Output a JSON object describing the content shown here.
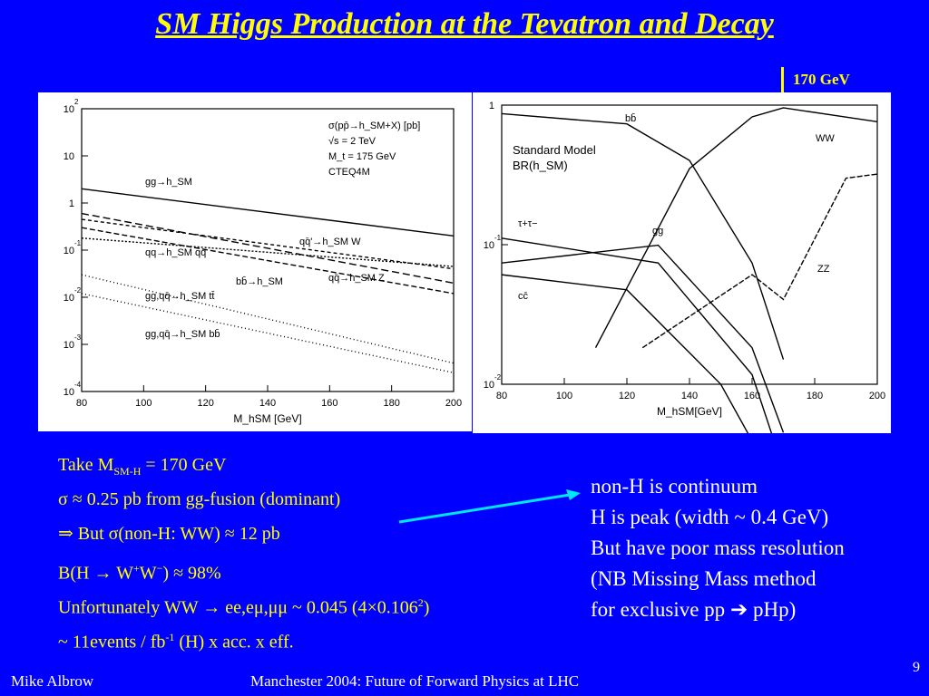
{
  "slide": {
    "title": "SM Higgs Production at the Tevatron and Decay",
    "marker_label": "170 GeV",
    "page_number": "9",
    "footer_left": "Mike Albrow",
    "footer_center": "Manchester 2004: Future of Forward Physics at LHC"
  },
  "left_text": {
    "line1": "Take M",
    "line1_sub": "SM-H",
    "line1_rest": " = 170 GeV",
    "line2": "σ ≈ 0.25 pb from gg-fusion (dominant)",
    "line3": "⇒ But σ(non-H: WW)  ≈  12 pb",
    "line4a": "B(H → W",
    "line4b": "W",
    "line4c": ") ≈  98%",
    "line5a": "Unfortunately WW → ee,eμ,μμ ~ 0.045 (4×0.106",
    "line5b": ")",
    "line6a": "~ 11events / fb",
    "line6b": " (H) x acc. x eff."
  },
  "right_text": {
    "line1": "non-H is continuum",
    "line2": "H is peak (width ~ 0.4 GeV)",
    "line3": "But have poor mass resolution",
    "line4": "(NB Missing Mass method",
    "line5": "for exclusive pp",
    "line5b": " pHp)"
  },
  "chart_data": [
    {
      "type": "line",
      "log_y": true,
      "xlim": [
        80,
        200
      ],
      "ylim": [
        0.0001,
        100
      ],
      "xticks": [
        "80",
        "100",
        "120",
        "140",
        "160",
        "180",
        "200"
      ],
      "yticks": [
        "10^2",
        "10",
        "1",
        "10^-1",
        "10^-2",
        "10^-3",
        "10^-4"
      ],
      "xlabel": "M_hSM [GeV]",
      "annotation_lines": [
        "σ(pp̄→h_SM+X) [pb]",
        "√s = 2 TeV",
        "M_t = 175 GeV",
        "CTEQ4M"
      ],
      "series_labels": [
        "gg→h_SM",
        "qq̄'→h_SM W",
        "qq→h_SM qq",
        "bb̄→h_SM",
        "qq̄→h_SM Z",
        "gg,qq̄→h_SM tt̄",
        "gg,qq̄→h_SM bb̄"
      ],
      "series": [
        {
          "name": "gg→h_SM",
          "x": [
            80,
            200
          ],
          "y": [
            2.0,
            0.2
          ]
        },
        {
          "name": "qq̄'→h_SM W",
          "x": [
            80,
            200
          ],
          "y": [
            0.6,
            0.02
          ]
        },
        {
          "name": "qq→h_SM qq",
          "x": [
            80,
            200
          ],
          "y": [
            0.18,
            0.045
          ]
        },
        {
          "name": "bb̄→h_SM",
          "x": [
            80,
            200
          ],
          "y": [
            0.45,
            0.04
          ]
        },
        {
          "name": "qq̄→h_SM Z",
          "x": [
            80,
            200
          ],
          "y": [
            0.3,
            0.012
          ]
        },
        {
          "name": "gg,qq̄→h_SM tt̄",
          "x": [
            80,
            200
          ],
          "y": [
            0.012,
            0.00025
          ]
        },
        {
          "name": "gg,qq̄→h_SM bb̄",
          "x": [
            80,
            200
          ],
          "y": [
            0.03,
            0.0004
          ]
        }
      ]
    },
    {
      "type": "line",
      "log_y": true,
      "xlim": [
        80,
        200
      ],
      "ylim": [
        0.005,
        1
      ],
      "xticks": [
        "80",
        "100",
        "120",
        "140",
        "160",
        "180",
        "200"
      ],
      "yticks": [
        "1",
        "10^-1",
        "10^-2"
      ],
      "xlabel": "M_hSM[GeV]",
      "annotation_lines": [
        "Standard Model",
        "BR(h_SM)"
      ],
      "series_labels": [
        "bb̄",
        "WW",
        "ZZ",
        "τ+τ−",
        "gg",
        "cc̄"
      ],
      "series": [
        {
          "name": "bb̄",
          "x": [
            80,
            120,
            140,
            160,
            170
          ],
          "y": [
            0.85,
            0.7,
            0.35,
            0.05,
            0.008
          ]
        },
        {
          "name": "WW",
          "x": [
            110,
            140,
            160,
            170,
            200
          ],
          "y": [
            0.01,
            0.3,
            0.8,
            0.95,
            0.73
          ]
        },
        {
          "name": "ZZ",
          "x": [
            125,
            160,
            170,
            190,
            200
          ],
          "y": [
            0.01,
            0.04,
            0.025,
            0.25,
            0.27
          ]
        },
        {
          "name": "τ+τ−",
          "x": [
            80,
            130,
            160,
            170
          ],
          "y": [
            0.08,
            0.05,
            0.006,
            0.001
          ]
        },
        {
          "name": "gg",
          "x": [
            80,
            130,
            160,
            170
          ],
          "y": [
            0.05,
            0.07,
            0.01,
            0.002
          ]
        },
        {
          "name": "cc̄",
          "x": [
            80,
            120,
            150,
            165
          ],
          "y": [
            0.04,
            0.03,
            0.005,
            0.001
          ]
        }
      ]
    }
  ]
}
